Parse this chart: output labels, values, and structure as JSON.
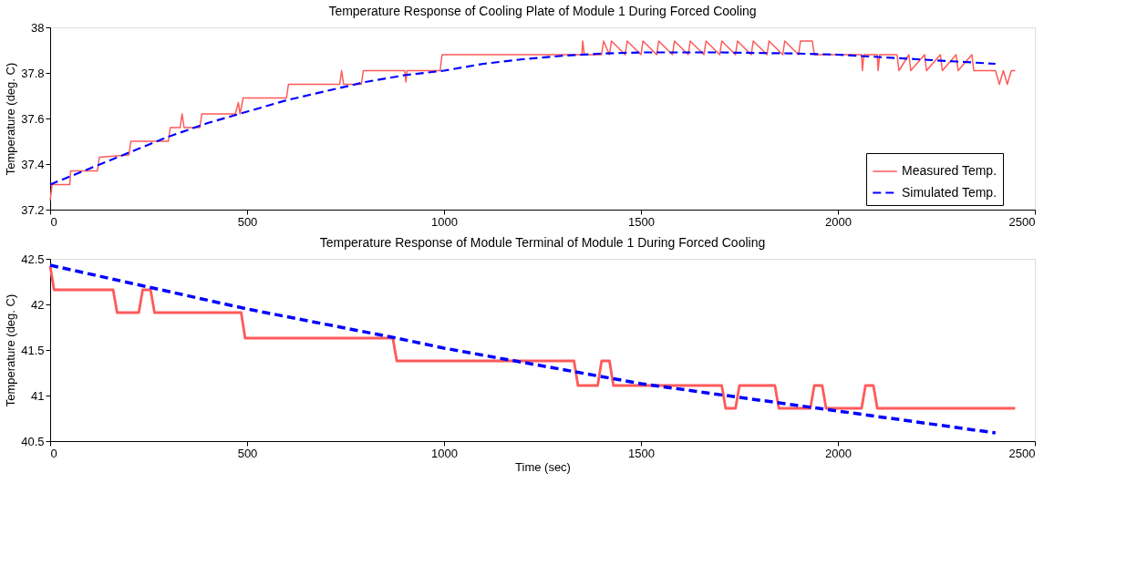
{
  "chart_data": [
    {
      "type": "line",
      "title": "Temperature Response of Cooling Plate of Module 1 During Forced Cooling",
      "ylabel": "Temperature (deg. C)",
      "xlim": [
        0,
        2500
      ],
      "xticks": [
        0,
        500,
        1000,
        1500,
        2000,
        2500
      ],
      "ylim": [
        37.2,
        38
      ],
      "yticks": [
        37.2,
        37.4,
        37.6,
        37.8,
        38
      ],
      "grid": false,
      "legend": "bottom right",
      "marker": "none",
      "series": [
        {
          "name": "Measured Temp.",
          "color": "#ff5a5a",
          "line_style": "solid",
          "x": [
            0,
            5,
            50,
            52,
            120,
            125,
            200,
            205,
            300,
            305,
            330,
            335,
            340,
            380,
            385,
            470,
            478,
            482,
            490,
            600,
            605,
            690,
            735,
            740,
            745,
            790,
            795,
            850,
            900,
            903,
            906,
            990,
            995,
            1150,
            1350,
            1352,
            1356,
            1400,
            1405,
            1420,
            1425,
            1460,
            1465,
            1500,
            1505,
            1540,
            1545,
            1580,
            1585,
            1620,
            1625,
            1660,
            1665,
            1700,
            1705,
            1740,
            1745,
            1780,
            1785,
            1820,
            1825,
            1860,
            1865,
            1900,
            1905,
            1935,
            1940,
            2060,
            2062,
            2066,
            2100,
            2102,
            2106,
            2150,
            2155,
            2180,
            2185,
            2220,
            2225,
            2260,
            2265,
            2300,
            2305,
            2340,
            2345,
            2400,
            2410,
            2420,
            2430,
            2440,
            2450
          ],
          "values": [
            37.24,
            37.31,
            37.31,
            37.37,
            37.37,
            37.43,
            37.44,
            37.5,
            37.5,
            37.56,
            37.56,
            37.62,
            37.56,
            37.56,
            37.62,
            37.62,
            37.67,
            37.62,
            37.69,
            37.69,
            37.75,
            37.75,
            37.75,
            37.81,
            37.75,
            37.75,
            37.81,
            37.81,
            37.81,
            37.76,
            37.81,
            37.81,
            37.88,
            37.88,
            37.88,
            37.94,
            37.88,
            37.88,
            37.94,
            37.88,
            37.94,
            37.88,
            37.94,
            37.88,
            37.94,
            37.88,
            37.94,
            37.88,
            37.94,
            37.88,
            37.94,
            37.88,
            37.94,
            37.88,
            37.94,
            37.88,
            37.94,
            37.88,
            37.94,
            37.88,
            37.94,
            37.88,
            37.94,
            37.88,
            37.94,
            37.94,
            37.88,
            37.88,
            37.81,
            37.88,
            37.88,
            37.81,
            37.88,
            37.88,
            37.81,
            37.88,
            37.81,
            37.88,
            37.81,
            37.88,
            37.81,
            37.88,
            37.81,
            37.88,
            37.81,
            37.81,
            37.75,
            37.81,
            37.75,
            37.81,
            37.81
          ]
        },
        {
          "name": "Simulated Temp.",
          "color": "#0000ff",
          "line_style": "dashed",
          "x": [
            0,
            100,
            200,
            300,
            400,
            500,
            600,
            700,
            800,
            900,
            1000,
            1100,
            1200,
            1300,
            1400,
            1500,
            1700,
            1900,
            2000,
            2100,
            2200,
            2300,
            2400
          ],
          "values": [
            37.31,
            37.38,
            37.45,
            37.52,
            37.58,
            37.63,
            37.68,
            37.72,
            37.76,
            37.79,
            37.81,
            37.84,
            37.86,
            37.875,
            37.885,
            37.89,
            37.89,
            37.885,
            37.88,
            37.87,
            37.86,
            37.85,
            37.84
          ]
        }
      ]
    },
    {
      "type": "line",
      "title": "Temperature Response of Module Terminal of Module 1 During Forced Cooling",
      "xlabel": "Time (sec)",
      "ylabel": "Temperature (deg. C)",
      "xlim": [
        0,
        2500
      ],
      "xticks": [
        0,
        500,
        1000,
        1500,
        2000,
        2500
      ],
      "ylim": [
        40.5,
        42.5
      ],
      "yticks": [
        40.5,
        41,
        41.5,
        42,
        42.5
      ],
      "grid": false,
      "marker": "none",
      "series": [
        {
          "color": "#ff5a5a",
          "line_style": "solid",
          "x": [
            0,
            10,
            160,
            170,
            225,
            235,
            255,
            265,
            485,
            495,
            870,
            880,
            1330,
            1340,
            1390,
            1400,
            1420,
            1430,
            1705,
            1715,
            1740,
            1750,
            1840,
            1850,
            1930,
            1940,
            1960,
            1970,
            2060,
            2070,
            2090,
            2100,
            2450
          ],
          "values": [
            42.42,
            42.16,
            42.16,
            41.91,
            41.91,
            42.16,
            42.16,
            41.91,
            41.91,
            41.63,
            41.63,
            41.38,
            41.38,
            41.11,
            41.11,
            41.38,
            41.38,
            41.11,
            41.11,
            40.86,
            40.86,
            41.11,
            41.11,
            40.86,
            40.86,
            41.11,
            41.11,
            40.86,
            40.86,
            41.11,
            41.11,
            40.86,
            40.86
          ]
        },
        {
          "color": "#0000ff",
          "line_style": "dashed",
          "x": [
            0,
            500,
            880,
            1000,
            1500,
            2000,
            2400
          ],
          "values": [
            42.43,
            41.95,
            41.63,
            41.52,
            41.13,
            40.83,
            40.59
          ]
        }
      ]
    }
  ]
}
